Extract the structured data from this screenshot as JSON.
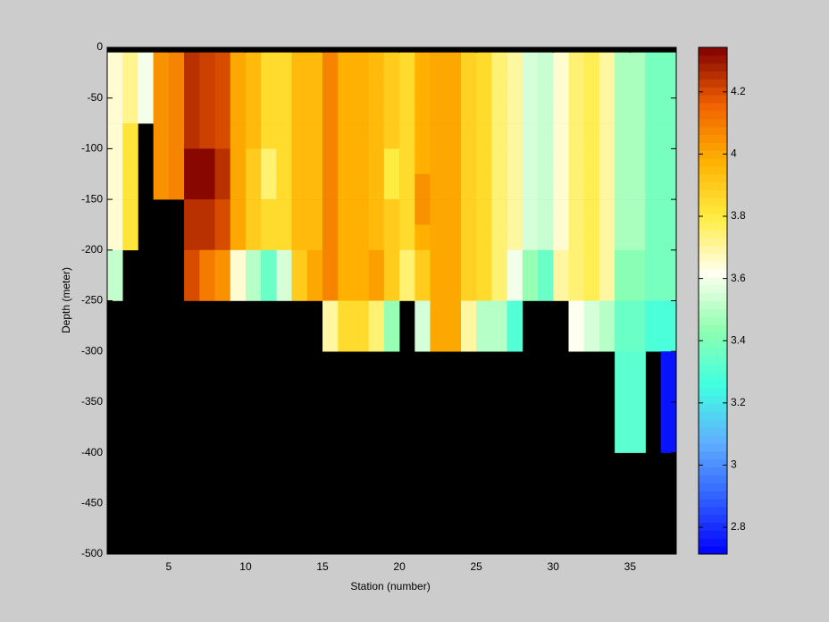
{
  "chart_data": {
    "type": "heatmap",
    "x_label": "Station (number)",
    "y_label": "Depth (meter)",
    "x": [
      1,
      2,
      3,
      4,
      5,
      6,
      7,
      8,
      9,
      10,
      11,
      12,
      13,
      14,
      15,
      16,
      17,
      18,
      19,
      20,
      21,
      22,
      23,
      24,
      25,
      26,
      27,
      28,
      29,
      30,
      31,
      32,
      33,
      34,
      35,
      36,
      37,
      38
    ],
    "y": [
      0,
      -5,
      -25,
      -50,
      -75,
      -100,
      -125,
      -150,
      -175,
      -200,
      -250,
      -300,
      -400,
      -500
    ],
    "z": [
      [
        null,
        3.65,
        3.65,
        3.65,
        3.65,
        3.65,
        3.65,
        3.65,
        3.65,
        3.52,
        null,
        null,
        null
      ],
      [
        null,
        3.72,
        3.72,
        3.72,
        3.82,
        3.82,
        3.82,
        3.82,
        3.82,
        null,
        null,
        null,
        null
      ],
      [
        null,
        3.6,
        3.6,
        3.6,
        null,
        null,
        null,
        null,
        null,
        null,
        null,
        null,
        null
      ],
      [
        null,
        4.05,
        4.05,
        4.05,
        4.05,
        4.05,
        4.05,
        null,
        null,
        null,
        null,
        null,
        null
      ],
      [
        null,
        4.08,
        4.08,
        4.08,
        4.08,
        4.08,
        4.08,
        null,
        null,
        null,
        null,
        null,
        null
      ],
      [
        null,
        4.25,
        4.25,
        4.25,
        4.25,
        4.33,
        4.33,
        4.25,
        4.25,
        4.2,
        null,
        null,
        null
      ],
      [
        null,
        4.22,
        4.22,
        4.22,
        4.22,
        4.33,
        4.33,
        4.25,
        4.25,
        4.1,
        null,
        null,
        null
      ],
      [
        null,
        4.2,
        4.2,
        4.2,
        4.2,
        4.25,
        4.25,
        4.2,
        4.2,
        4.05,
        null,
        null,
        null
      ],
      [
        null,
        4.0,
        4.0,
        4.0,
        4.0,
        4.0,
        4.0,
        4.0,
        4.0,
        3.65,
        null,
        null,
        null
      ],
      [
        null,
        3.95,
        3.95,
        3.95,
        3.95,
        3.9,
        3.9,
        3.9,
        3.9,
        3.5,
        null,
        null,
        null
      ],
      [
        null,
        3.85,
        3.85,
        3.85,
        3.85,
        3.75,
        3.75,
        3.85,
        3.85,
        3.35,
        null,
        null,
        null
      ],
      [
        null,
        3.85,
        3.85,
        3.85,
        3.85,
        3.85,
        3.85,
        3.85,
        3.85,
        3.55,
        null,
        null,
        null
      ],
      [
        null,
        3.95,
        3.95,
        3.95,
        3.95,
        3.95,
        3.95,
        3.95,
        3.95,
        3.9,
        null,
        null,
        null
      ],
      [
        null,
        3.95,
        3.95,
        3.95,
        3.95,
        3.95,
        3.95,
        3.95,
        3.95,
        4.0,
        null,
        null,
        null
      ],
      [
        null,
        4.08,
        4.08,
        4.08,
        4.08,
        4.08,
        4.08,
        4.08,
        4.08,
        4.08,
        3.7,
        null,
        null
      ],
      [
        null,
        3.98,
        3.98,
        3.98,
        3.98,
        3.98,
        3.98,
        3.98,
        3.98,
        3.98,
        3.85,
        null,
        null
      ],
      [
        null,
        3.98,
        3.98,
        3.98,
        3.98,
        3.98,
        3.98,
        3.98,
        3.98,
        3.98,
        3.85,
        null,
        null
      ],
      [
        null,
        3.95,
        3.95,
        3.95,
        3.95,
        3.95,
        3.95,
        3.95,
        3.95,
        4.02,
        3.75,
        null,
        null
      ],
      [
        null,
        3.9,
        3.9,
        3.9,
        3.9,
        3.8,
        3.8,
        3.9,
        3.9,
        3.9,
        3.45,
        null,
        null
      ],
      [
        null,
        3.85,
        3.85,
        3.85,
        3.85,
        3.85,
        3.85,
        3.85,
        3.85,
        3.75,
        null,
        null,
        null
      ],
      [
        null,
        3.98,
        3.98,
        3.98,
        3.98,
        3.98,
        4.05,
        4.05,
        3.98,
        3.9,
        3.55,
        null,
        null
      ],
      [
        null,
        4.0,
        4.0,
        4.0,
        4.0,
        4.0,
        4.0,
        4.0,
        4.0,
        4.0,
        4.0,
        null,
        null
      ],
      [
        null,
        4.0,
        4.0,
        4.0,
        4.0,
        4.0,
        4.0,
        4.0,
        4.0,
        4.0,
        4.0,
        null,
        null
      ],
      [
        null,
        3.88,
        3.88,
        3.88,
        3.88,
        3.88,
        3.88,
        3.88,
        3.88,
        3.88,
        3.7,
        null,
        null
      ],
      [
        null,
        3.85,
        3.85,
        3.85,
        3.85,
        3.85,
        3.85,
        3.85,
        3.85,
        3.85,
        3.5,
        null,
        null
      ],
      [
        null,
        3.75,
        3.75,
        3.75,
        3.75,
        3.75,
        3.75,
        3.75,
        3.75,
        3.75,
        3.5,
        null,
        null
      ],
      [
        null,
        3.7,
        3.7,
        3.7,
        3.7,
        3.7,
        3.7,
        3.7,
        3.7,
        3.6,
        3.3,
        null,
        null
      ],
      [
        null,
        3.55,
        3.55,
        3.55,
        3.55,
        3.55,
        3.55,
        3.55,
        3.55,
        3.45,
        null,
        null,
        null
      ],
      [
        null,
        3.53,
        3.53,
        3.53,
        3.53,
        3.53,
        3.53,
        3.53,
        3.53,
        3.35,
        null,
        null,
        null
      ],
      [
        null,
        3.65,
        3.65,
        3.65,
        3.65,
        3.65,
        3.65,
        3.65,
        3.65,
        3.7,
        null,
        null,
        null
      ],
      [
        null,
        3.75,
        3.75,
        3.75,
        3.75,
        3.75,
        3.75,
        3.75,
        3.75,
        3.75,
        3.62,
        null,
        null
      ],
      [
        null,
        3.78,
        3.78,
        3.78,
        3.78,
        3.78,
        3.78,
        3.78,
        3.78,
        3.78,
        3.55,
        null,
        null
      ],
      [
        null,
        3.7,
        3.7,
        3.7,
        3.7,
        3.7,
        3.7,
        3.7,
        3.7,
        3.7,
        3.5,
        null,
        null
      ],
      [
        null,
        3.48,
        3.48,
        3.48,
        3.48,
        3.48,
        3.48,
        3.48,
        3.48,
        3.42,
        3.35,
        3.32,
        null
      ],
      [
        null,
        3.48,
        3.48,
        3.48,
        3.48,
        3.48,
        3.48,
        3.48,
        3.48,
        3.42,
        3.35,
        3.32,
        null
      ],
      [
        null,
        3.38,
        3.38,
        3.38,
        3.38,
        3.38,
        3.38,
        3.38,
        3.38,
        3.38,
        3.28,
        null,
        null
      ],
      [
        null,
        3.38,
        3.38,
        3.38,
        3.38,
        3.38,
        3.38,
        3.38,
        3.38,
        3.38,
        3.28,
        2.75,
        null
      ]
    ],
    "xlim": [
      1,
      38
    ],
    "ylim": [
      -500,
      0
    ],
    "xticks": [
      5,
      10,
      15,
      20,
      25,
      30,
      35
    ],
    "yticks": [
      0,
      -50,
      -100,
      -150,
      -200,
      -250,
      -300,
      -350,
      -400,
      -450,
      -500
    ],
    "clim": [
      2.714,
      4.343
    ],
    "cticks": [
      2.8,
      3,
      3.2,
      3.4,
      3.6,
      3.8,
      4,
      4.2
    ],
    "colormap": [
      "#0000ff",
      "#3060ff",
      "#60b0ff",
      "#40ffe0",
      "#90ffb0",
      "#fffff0",
      "#ffec40",
      "#ffb000",
      "#f06000",
      "#800000"
    ],
    "nan_color": "#000000"
  }
}
